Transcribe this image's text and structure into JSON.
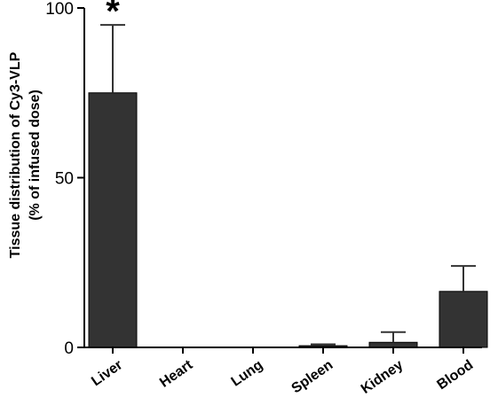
{
  "chart_data": {
    "type": "bar",
    "title": "",
    "xlabel": "",
    "ylabel_line1": "Tissue distribution of Cy3-VLP",
    "ylabel_line2": "(% of infused dose)",
    "ylim": [
      0,
      100
    ],
    "yticks": [
      0,
      50,
      100
    ],
    "categories": [
      "Liver",
      "Heart",
      "Lung",
      "Spleen",
      "Kidney",
      "Blood"
    ],
    "values": [
      75,
      0,
      0,
      0.5,
      1.5,
      16.5
    ],
    "errors": [
      20,
      0,
      0,
      0.4,
      3,
      7.5
    ],
    "annotations": [
      {
        "category": "Liver",
        "text": "*"
      }
    ],
    "bar_color": "#333333",
    "grid": false,
    "legend": "none"
  }
}
